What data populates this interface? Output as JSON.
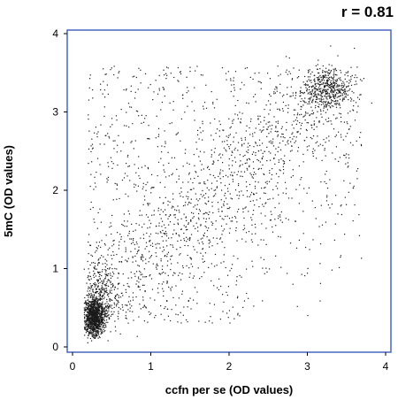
{
  "chart_data": {
    "type": "scatter",
    "title": "",
    "annotation": "r = 0.81",
    "xlabel": "ccfn per se (OD values)",
    "ylabel": "5mC (OD values)",
    "xlim": [
      0,
      4
    ],
    "ylim": [
      0,
      4
    ],
    "x_ticks": [
      "0",
      "1",
      "2",
      "3",
      "4"
    ],
    "y_ticks": [
      "0",
      "1",
      "2",
      "3",
      "4"
    ],
    "grid": false,
    "legend": "none",
    "frame_color": "#3a5bbf",
    "point_color": "#1a1a1a",
    "clusters": [
      {
        "name": "low",
        "center": [
          0.27,
          0.38
        ],
        "spread": [
          0.07,
          0.12
        ],
        "count": 1400
      },
      {
        "name": "high",
        "center": [
          3.28,
          3.28
        ],
        "spread": [
          0.16,
          0.13
        ],
        "count": 450
      },
      {
        "name": "band",
        "from": [
          0.25,
          0.5
        ],
        "to": [
          3.3,
          3.25
        ],
        "width": 0.55,
        "count": 900
      },
      {
        "name": "background",
        "xrange": [
          0.2,
          3.7
        ],
        "yrange": [
          0.3,
          3.6
        ],
        "count": 1200
      }
    ]
  }
}
